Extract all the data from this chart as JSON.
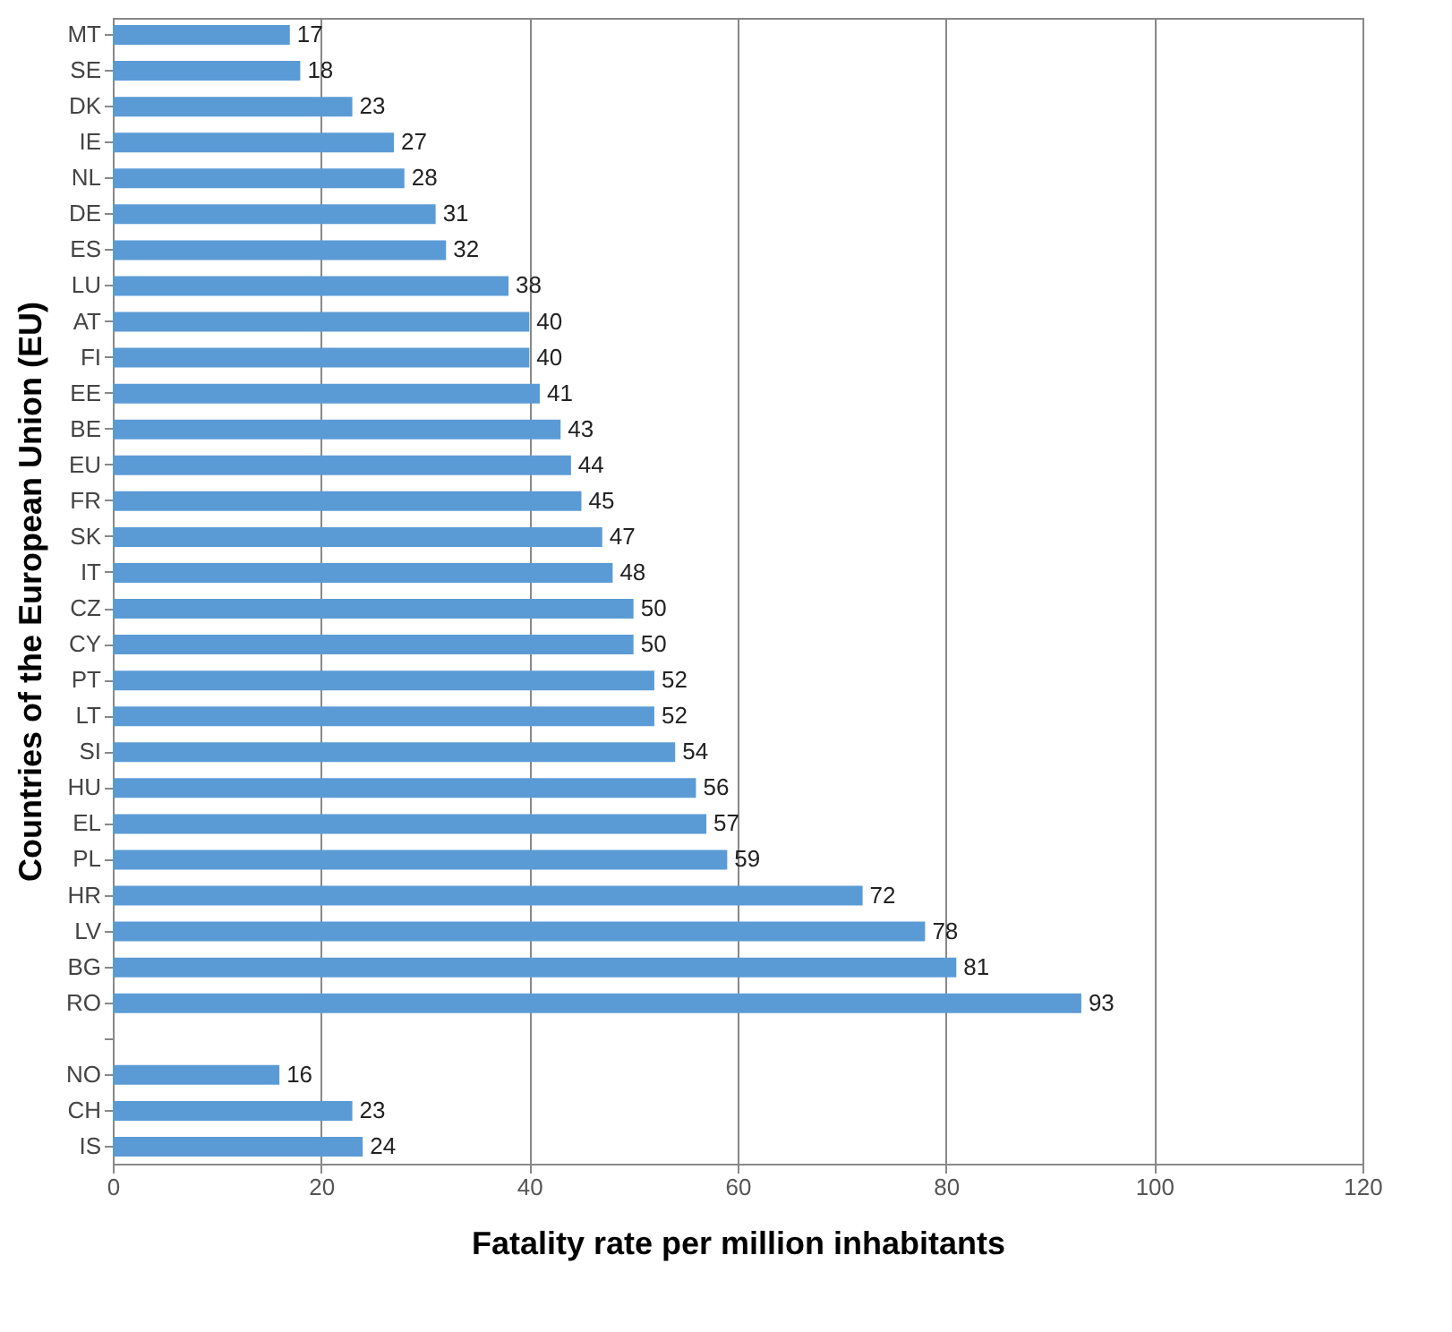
{
  "chart_data": {
    "type": "bar",
    "orientation": "horizontal",
    "xlabel": "Fatality rate per million inhabitants",
    "ylabel": "Countries of the European Union (EU)",
    "categories": [
      "MT",
      "SE",
      "DK",
      "IE",
      "NL",
      "DE",
      "ES",
      "LU",
      "AT",
      "FI",
      "EE",
      "BE",
      "EU",
      "FR",
      "SK",
      "IT",
      "CZ",
      "CY",
      "PT",
      "LT",
      "SI",
      "HU",
      "EL",
      "PL",
      "HR",
      "LV",
      "BG",
      "RO",
      null,
      "NO",
      "CH",
      "IS"
    ],
    "values": [
      17,
      18,
      23,
      27,
      28,
      31,
      32,
      38,
      40,
      40,
      41,
      43,
      44,
      45,
      47,
      48,
      50,
      50,
      52,
      52,
      54,
      56,
      57,
      59,
      72,
      78,
      81,
      93,
      null,
      16,
      23,
      24
    ],
    "color": "#5b9bd5",
    "data_labels": true,
    "xlim": [
      0,
      120
    ],
    "xticks": [
      0,
      20,
      40,
      60,
      80,
      100,
      120
    ],
    "grid": "x"
  }
}
